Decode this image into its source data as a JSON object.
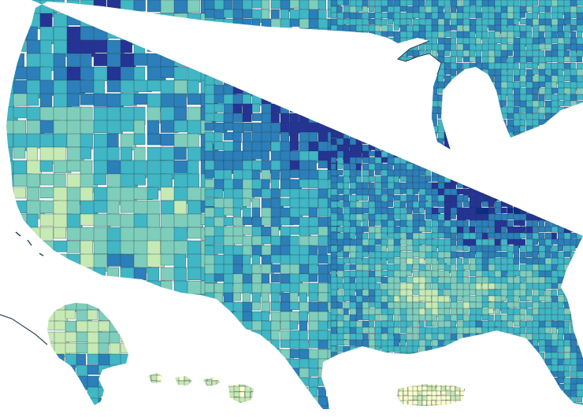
{
  "map": {
    "type": "county choropleth",
    "region": "United States",
    "color_scale": [
      "#ffffcc",
      "#c7e9b4",
      "#7fcdbb",
      "#41b6c4",
      "#2c7fb8",
      "#253494",
      "#0c2c84"
    ],
    "county_border_color": "#1f3a4a",
    "background_color": "#ffffff",
    "regions": [
      {
        "name": "contiguous-us",
        "level": 0.55
      },
      {
        "name": "alaska",
        "level": 0.22
      },
      {
        "name": "hawaii",
        "level": 0.12
      },
      {
        "name": "puerto-rico",
        "level": 0.05
      }
    ]
  }
}
